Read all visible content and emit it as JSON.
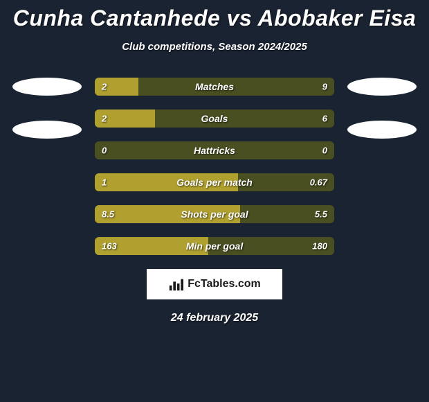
{
  "background_color": "#1a2331",
  "text_color": "#ffffff",
  "title": "Cunha Cantanhede vs Abobaker Eisa",
  "subtitle": "Club competitions, Season 2024/2025",
  "left_player": {
    "pills": [
      {
        "color": "#ffffff"
      },
      {
        "color": "#ffffff"
      }
    ]
  },
  "right_player": {
    "pills": [
      {
        "color": "#ffffff"
      },
      {
        "color": "#ffffff"
      }
    ]
  },
  "bar_colors": {
    "left_fill": "#b0a02f",
    "right_fill": "#494f21",
    "empty": "#1a2331"
  },
  "bars": [
    {
      "label": "Matches",
      "left": "2",
      "right": "9",
      "left_pct": 18.2
    },
    {
      "label": "Goals",
      "left": "2",
      "right": "6",
      "left_pct": 25.0
    },
    {
      "label": "Hattricks",
      "left": "0",
      "right": "0",
      "left_pct": 0.0
    },
    {
      "label": "Goals per match",
      "left": "1",
      "right": "0.67",
      "left_pct": 59.9
    },
    {
      "label": "Shots per goal",
      "left": "8.5",
      "right": "5.5",
      "left_pct": 60.7
    },
    {
      "label": "Min per goal",
      "left": "163",
      "right": "180",
      "left_pct": 47.5
    }
  ],
  "logo": {
    "brand": "FcTables.com",
    "icon_color": "#1a1a1a",
    "box_bg": "#ffffff"
  },
  "date": "24 february 2025"
}
